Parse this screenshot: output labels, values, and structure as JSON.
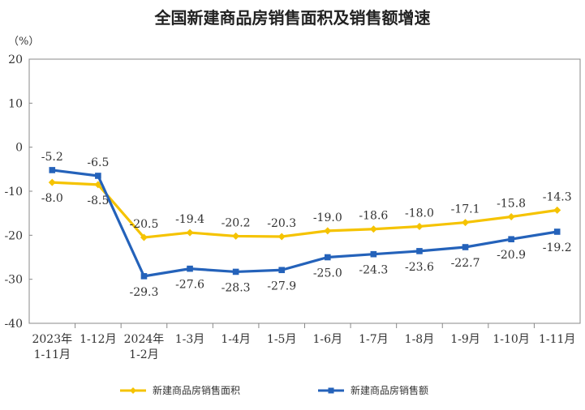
{
  "chart_data": {
    "type": "line",
    "title": "全国新建商品房销售面积及销售额增速",
    "unit": "（%）",
    "ylim": [
      -40,
      20
    ],
    "yticks": [
      20,
      10,
      0,
      -10,
      -20,
      -30,
      -40
    ],
    "categories": [
      [
        "2023年",
        "1-11月"
      ],
      [
        "1-12月"
      ],
      [
        "2024年",
        "1-2月"
      ],
      [
        "1-3月"
      ],
      [
        "1-4月"
      ],
      [
        "1-5月"
      ],
      [
        "1-6月"
      ],
      [
        "1-7月"
      ],
      [
        "1-8月"
      ],
      [
        "1-9月"
      ],
      [
        "1-10月"
      ],
      [
        "1-11月"
      ]
    ],
    "series": [
      {
        "name": "新建商品房销售面积",
        "color": "#F5C300",
        "marker": "diamond",
        "values": [
          -8.0,
          -8.5,
          -20.5,
          -19.4,
          -20.2,
          -20.3,
          -19.0,
          -18.6,
          -18.0,
          -17.1,
          -15.8,
          -14.3
        ],
        "labels": [
          "-8.0",
          "-8.5",
          "-20.5",
          "-19.4",
          "-20.2",
          "-20.3",
          "-19.0",
          "-18.6",
          "-18.0",
          "-17.1",
          "-15.8",
          "-14.3"
        ],
        "label_side": [
          "below",
          "below",
          "above",
          "above",
          "above",
          "above",
          "above",
          "above",
          "above",
          "above",
          "above",
          "above"
        ]
      },
      {
        "name": "新建商品房销售额",
        "color": "#2462BA",
        "marker": "square",
        "values": [
          -5.2,
          -6.5,
          -29.3,
          -27.6,
          -28.3,
          -27.9,
          -25.0,
          -24.3,
          -23.6,
          -22.7,
          -20.9,
          -19.2
        ],
        "labels": [
          "-5.2",
          "-6.5",
          "-29.3",
          "-27.6",
          "-28.3",
          "-27.9",
          "-25.0",
          "-24.3",
          "-23.6",
          "-22.7",
          "-20.9",
          "-19.2"
        ],
        "label_side": [
          "above",
          "above",
          "below",
          "below",
          "below",
          "below",
          "below",
          "below",
          "below",
          "below",
          "below",
          "below"
        ]
      }
    ],
    "legend_position": "bottom"
  }
}
